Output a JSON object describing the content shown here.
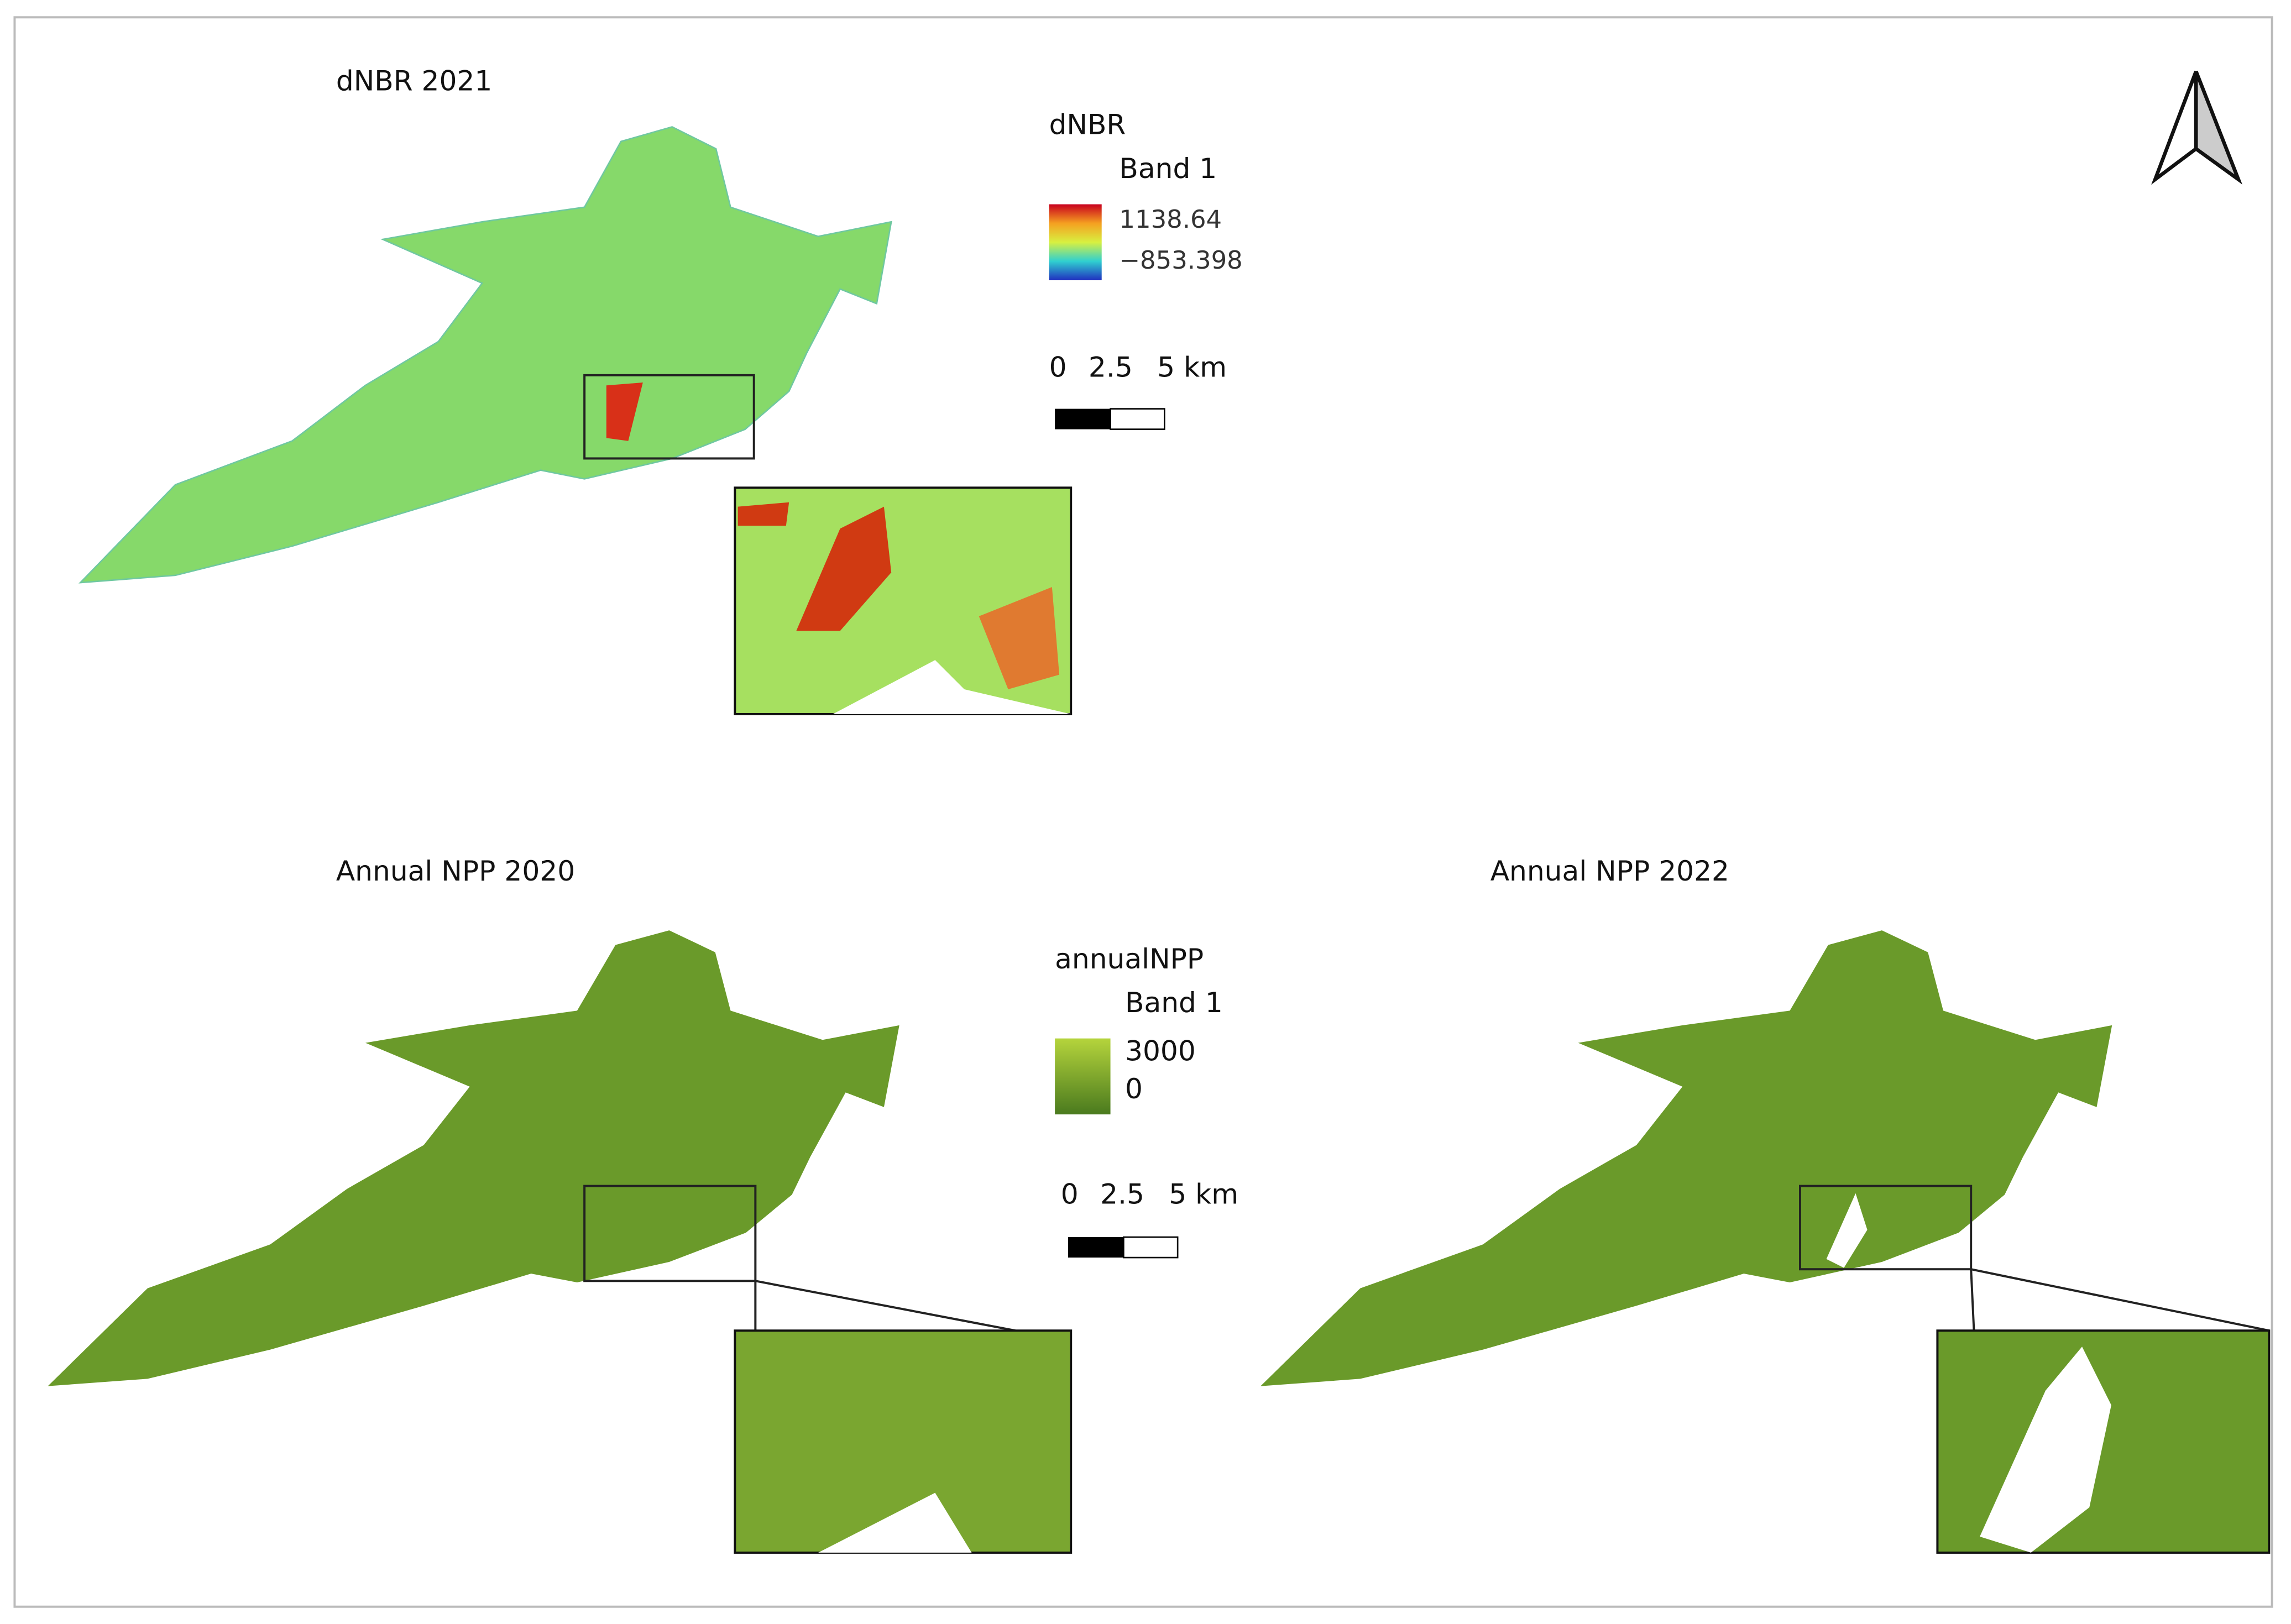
{
  "panels": [
    {
      "title": "dNBR 2021"
    },
    {
      "title": "Annual NPP 2020"
    },
    {
      "title": "Annual NPP 2022"
    }
  ],
  "legends": [
    {
      "layer": "dNBR",
      "band": "Band 1",
      "max": "1138.64",
      "min": "−853.398"
    },
    {
      "layer": "annualNPP",
      "band": "Band 1",
      "max": "3000",
      "min": "0"
    }
  ],
  "scale_bars": [
    {
      "labels": [
        "0",
        "2.5",
        "5 km"
      ]
    },
    {
      "labels": [
        "0",
        "2.5",
        "5 km"
      ]
    }
  ]
}
